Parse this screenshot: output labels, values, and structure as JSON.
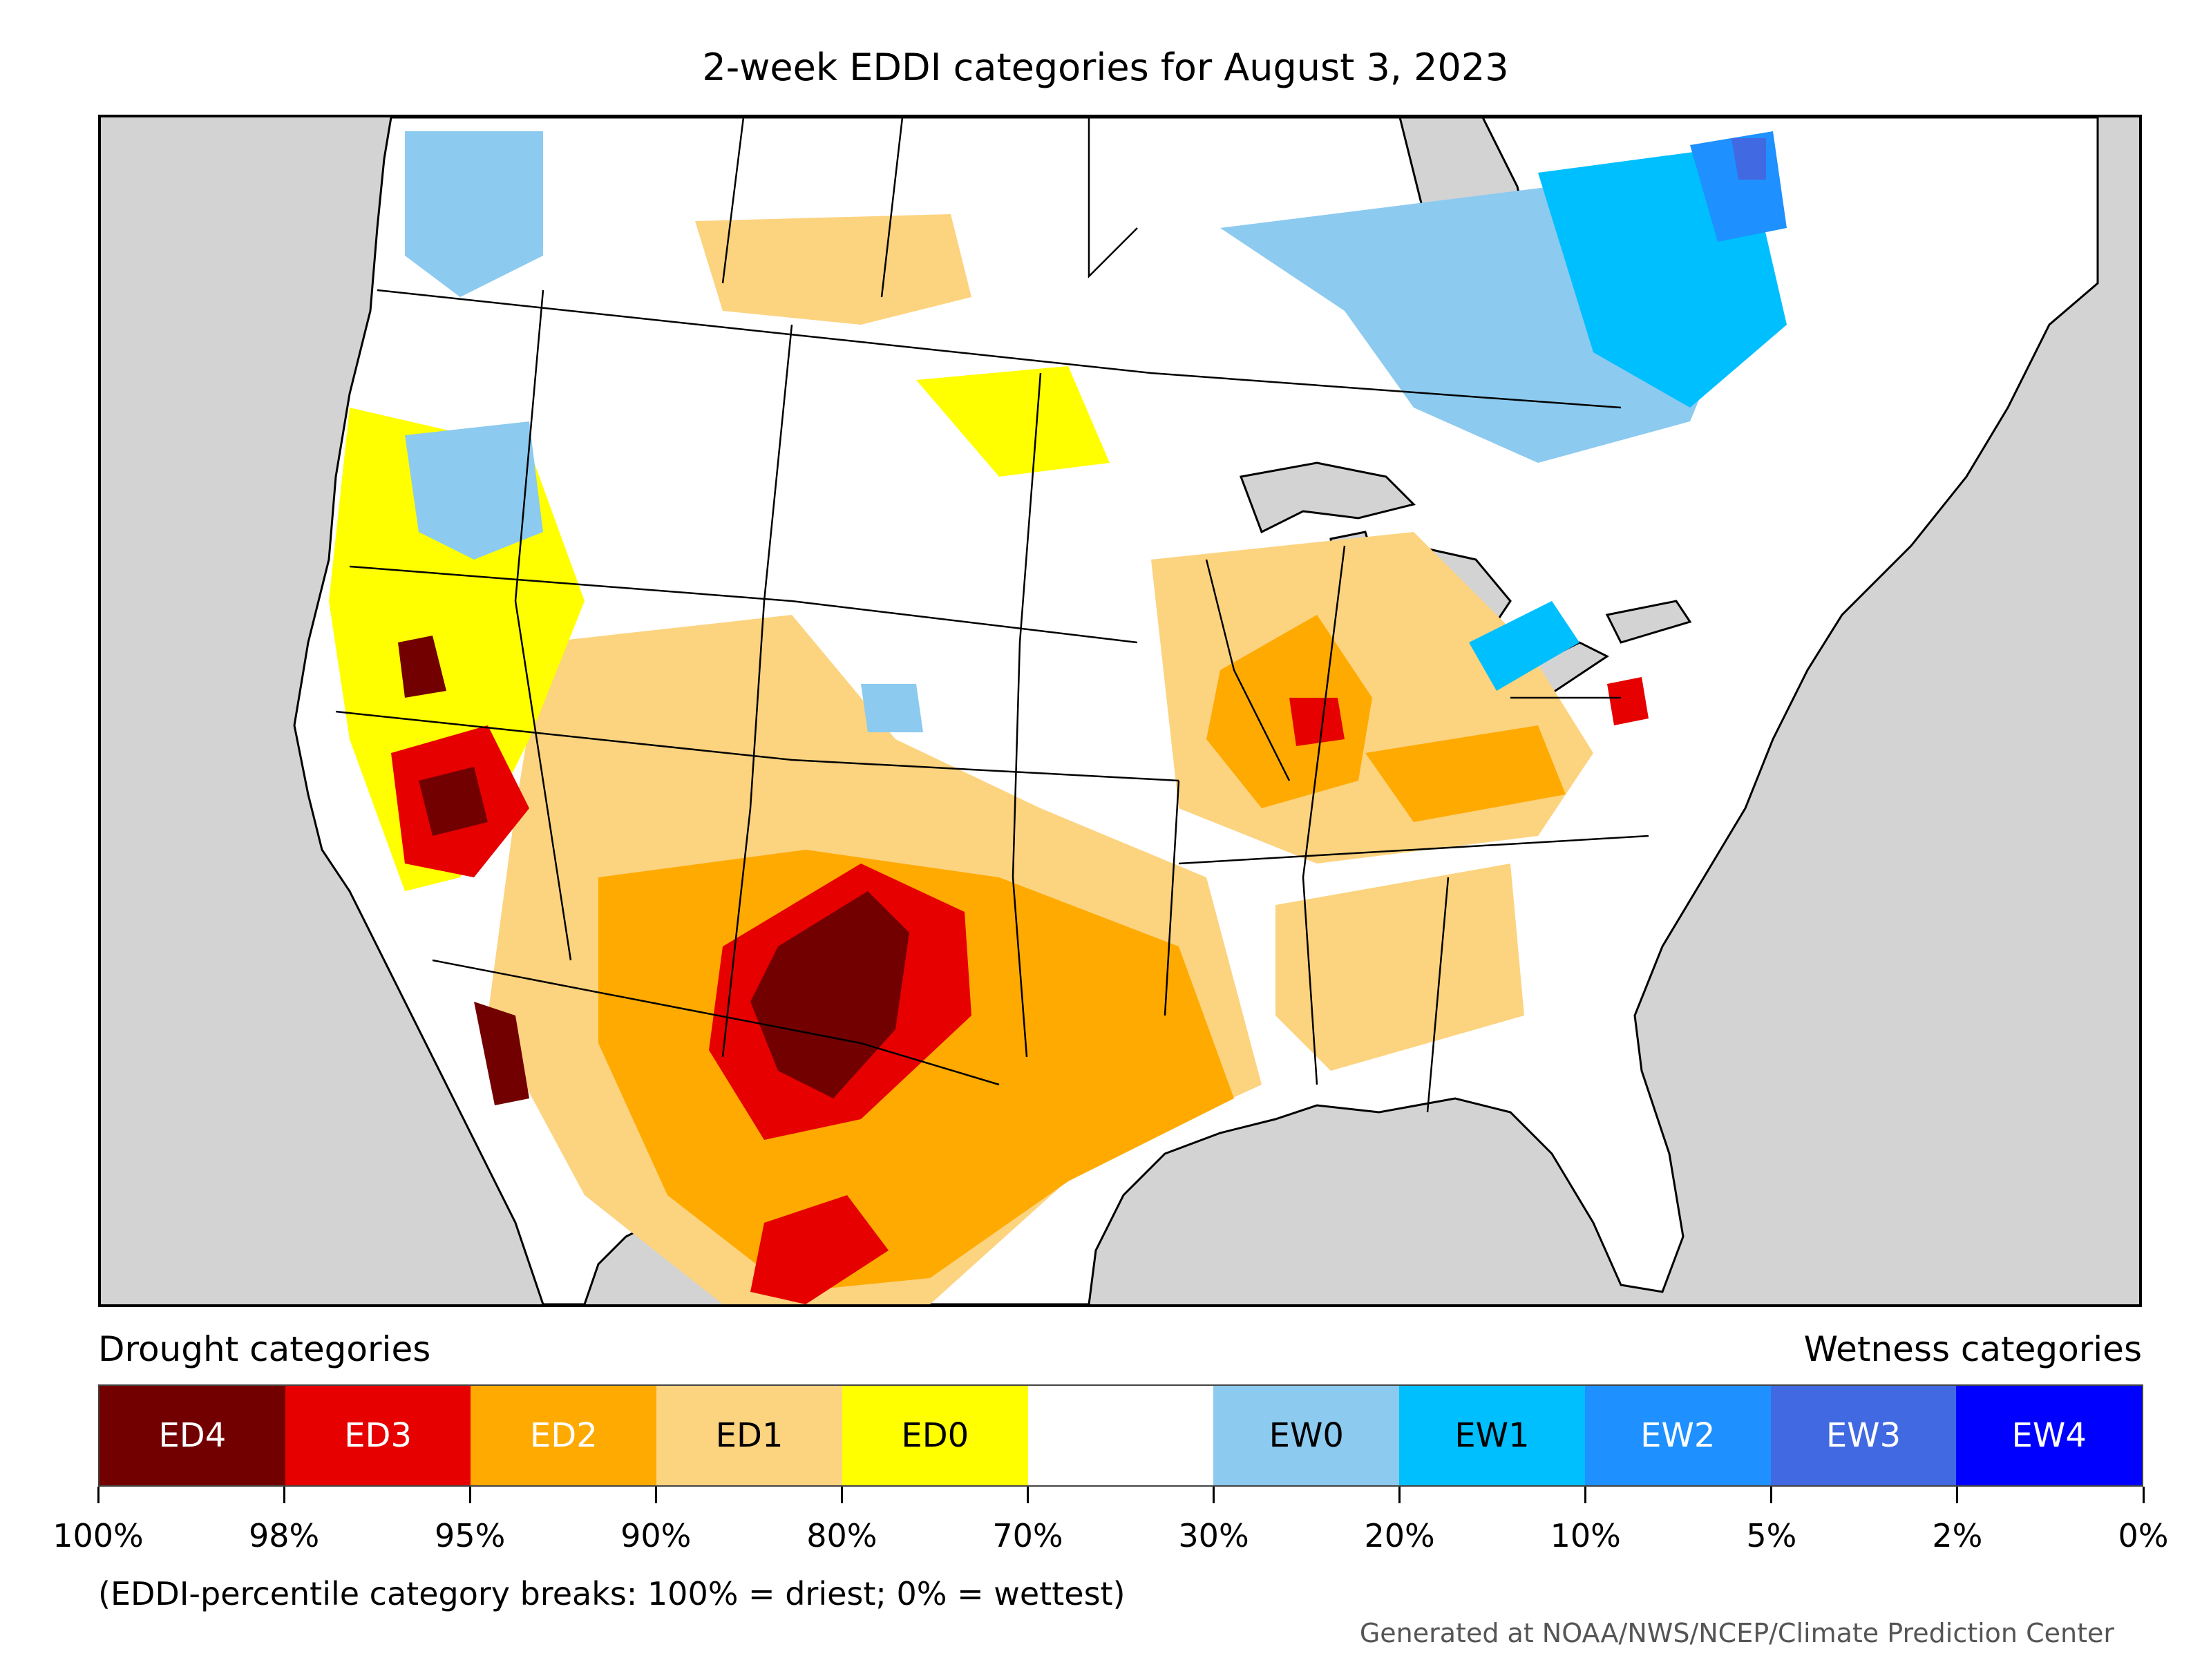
{
  "title": "2-week EDDI categories for August 3, 2023",
  "legend": {
    "drought_heading": "Drought categories",
    "wetness_heading": "Wetness categories",
    "categories": [
      {
        "label": "ED4",
        "color": "#730000",
        "text_color": "#ffffff"
      },
      {
        "label": "ED3",
        "color": "#e60000",
        "text_color": "#ffffff"
      },
      {
        "label": "ED2",
        "color": "#ffaa00",
        "text_color": "#ffffff"
      },
      {
        "label": "ED1",
        "color": "#fcd37f",
        "text_color": "#000000"
      },
      {
        "label": "ED0",
        "color": "#ffff00",
        "text_color": "#000000"
      },
      {
        "label": "",
        "color": "#ffffff",
        "text_color": "#000000"
      },
      {
        "label": "EW0",
        "color": "#8ccaef",
        "text_color": "#000000"
      },
      {
        "label": "EW1",
        "color": "#00bfff",
        "text_color": "#000000"
      },
      {
        "label": "EW2",
        "color": "#1e90ff",
        "text_color": "#ffffff"
      },
      {
        "label": "EW3",
        "color": "#4169e1",
        "text_color": "#ffffff"
      },
      {
        "label": "EW4",
        "color": "#0000ff",
        "text_color": "#ffffff"
      }
    ],
    "tick_labels": [
      "100%",
      "98%",
      "95%",
      "90%",
      "80%",
      "70%",
      "30%",
      "20%",
      "10%",
      "5%",
      "2%",
      "0%"
    ],
    "note": "(EDDI-percentile category breaks: 100% = driest; 0% = wettest)"
  },
  "credit": "Generated at NOAA/NWS/NCEP/Climate Prediction Center",
  "map": {
    "ocean_color": "#d3d3d3",
    "land_color": "#ffffff"
  }
}
